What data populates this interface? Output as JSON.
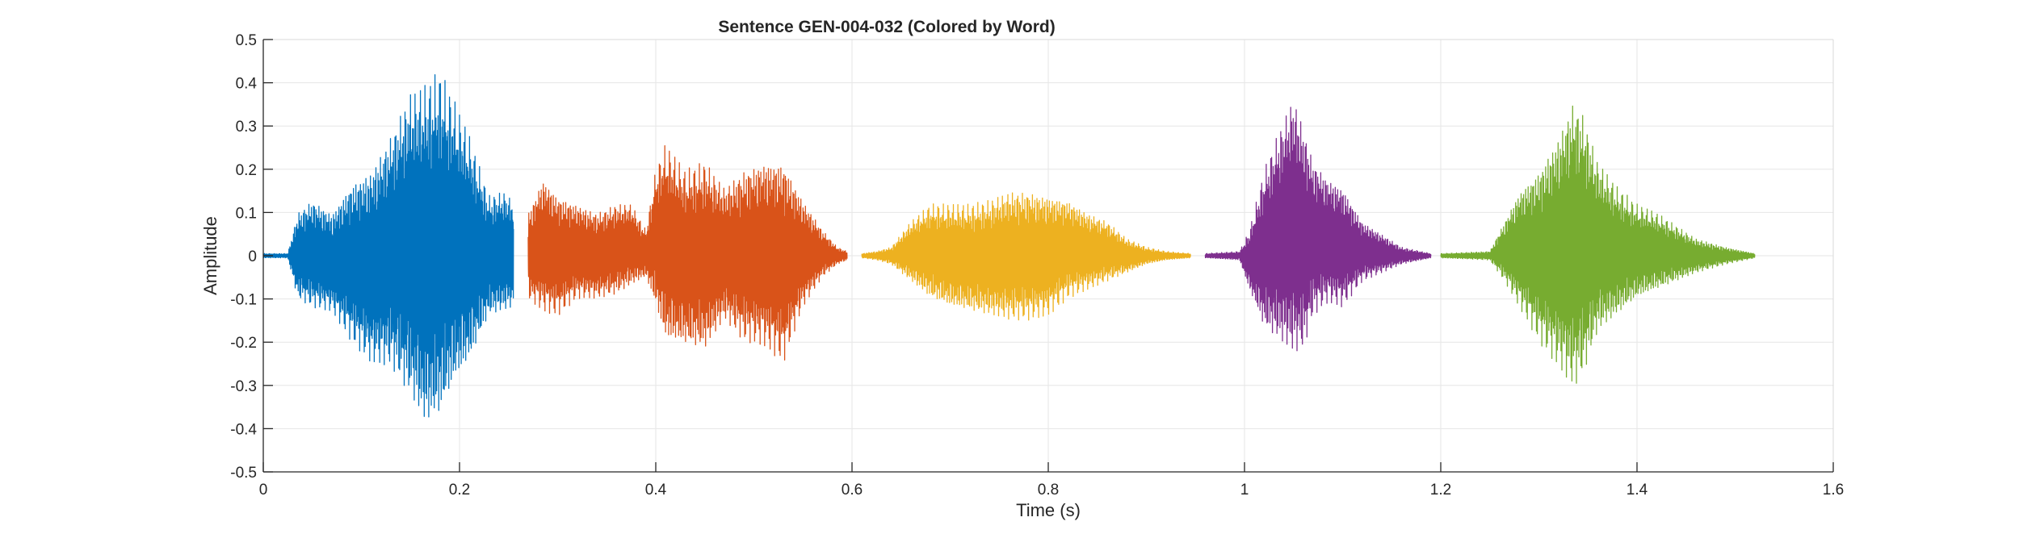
{
  "chart_data": {
    "type": "line",
    "title": "Sentence GEN-004-032 (Colored by Word)",
    "xlabel": "Time (s)",
    "ylabel": "Amplitude",
    "xlim": [
      0,
      1.6
    ],
    "ylim": [
      -0.5,
      0.5
    ],
    "xticks": [
      0,
      0.2,
      0.4,
      0.6,
      0.8,
      1,
      1.2,
      1.4,
      1.6
    ],
    "xtick_labels": [
      "0",
      "0.2",
      "0.4",
      "0.6",
      "0.8",
      "1",
      "1.2",
      "1.4",
      "1.6"
    ],
    "yticks": [
      0.5,
      0.4,
      0.3,
      0.2,
      0.1,
      0,
      -0.1,
      -0.2,
      -0.3,
      -0.4,
      -0.5
    ],
    "ytick_labels": [
      "0.5",
      "0.4",
      "0.3",
      "0.2",
      "0.1",
      "0",
      "-0.1",
      "-0.2",
      "-0.3",
      "-0.4",
      "-0.5"
    ],
    "grid": true,
    "legend": false,
    "series": [
      {
        "color": "#0072BD",
        "start": 0.0,
        "end": 0.255,
        "envelope": {
          "t": [
            0.0,
            0.025,
            0.035,
            0.05,
            0.07,
            0.09,
            0.11,
            0.13,
            0.15,
            0.165,
            0.18,
            0.195,
            0.21,
            0.23,
            0.245,
            0.255
          ],
          "pos": [
            0.005,
            0.005,
            0.1,
            0.13,
            0.1,
            0.17,
            0.2,
            0.28,
            0.38,
            0.4,
            0.43,
            0.36,
            0.28,
            0.14,
            0.15,
            0.13
          ],
          "neg": [
            -0.005,
            -0.005,
            -0.1,
            -0.12,
            -0.13,
            -0.2,
            -0.25,
            -0.26,
            -0.33,
            -0.4,
            -0.38,
            -0.3,
            -0.25,
            -0.14,
            -0.13,
            -0.12
          ]
        }
      },
      {
        "color": "#D95319",
        "start": 0.27,
        "end": 0.595,
        "envelope": {
          "t": [
            0.27,
            0.285,
            0.3,
            0.32,
            0.34,
            0.36,
            0.375,
            0.39,
            0.4,
            0.41,
            0.43,
            0.45,
            0.47,
            0.49,
            0.51,
            0.53,
            0.55,
            0.57,
            0.585,
            0.595
          ],
          "pos": [
            0.1,
            0.18,
            0.14,
            0.12,
            0.1,
            0.12,
            0.12,
            0.06,
            0.2,
            0.26,
            0.2,
            0.22,
            0.16,
            0.2,
            0.22,
            0.22,
            0.13,
            0.06,
            0.02,
            0.01
          ],
          "neg": [
            -0.1,
            -0.13,
            -0.14,
            -0.1,
            -0.1,
            -0.09,
            -0.07,
            -0.05,
            -0.12,
            -0.2,
            -0.21,
            -0.22,
            -0.15,
            -0.2,
            -0.21,
            -0.25,
            -0.12,
            -0.05,
            -0.02,
            -0.01
          ]
        }
      },
      {
        "color": "#EDB120",
        "start": 0.61,
        "end": 0.945,
        "envelope": {
          "t": [
            0.61,
            0.625,
            0.64,
            0.66,
            0.68,
            0.7,
            0.72,
            0.74,
            0.76,
            0.78,
            0.8,
            0.82,
            0.84,
            0.86,
            0.88,
            0.9,
            0.92,
            0.945
          ],
          "pos": [
            0.005,
            0.01,
            0.02,
            0.08,
            0.12,
            0.12,
            0.12,
            0.13,
            0.15,
            0.15,
            0.14,
            0.13,
            0.1,
            0.08,
            0.04,
            0.02,
            0.01,
            0.005
          ],
          "neg": [
            -0.005,
            -0.01,
            -0.02,
            -0.06,
            -0.1,
            -0.12,
            -0.13,
            -0.14,
            -0.15,
            -0.15,
            -0.14,
            -0.1,
            -0.08,
            -0.06,
            -0.04,
            -0.02,
            -0.01,
            -0.005
          ]
        }
      },
      {
        "color": "#7E2F8E",
        "start": 0.96,
        "end": 1.19,
        "envelope": {
          "t": [
            0.96,
            0.995,
            1.005,
            1.02,
            1.035,
            1.05,
            1.06,
            1.07,
            1.085,
            1.1,
            1.12,
            1.14,
            1.16,
            1.19
          ],
          "pos": [
            0.005,
            0.01,
            0.06,
            0.2,
            0.29,
            0.37,
            0.3,
            0.22,
            0.18,
            0.16,
            0.08,
            0.05,
            0.02,
            0.005
          ],
          "neg": [
            -0.005,
            -0.01,
            -0.08,
            -0.17,
            -0.2,
            -0.23,
            -0.22,
            -0.14,
            -0.11,
            -0.12,
            -0.06,
            -0.04,
            -0.02,
            -0.005
          ]
        }
      },
      {
        "color": "#77AC30",
        "start": 1.2,
        "end": 1.52,
        "envelope": {
          "t": [
            1.2,
            1.25,
            1.265,
            1.28,
            1.3,
            1.32,
            1.335,
            1.345,
            1.36,
            1.38,
            1.4,
            1.42,
            1.44,
            1.46,
            1.49,
            1.52
          ],
          "pos": [
            0.005,
            0.01,
            0.08,
            0.15,
            0.2,
            0.28,
            0.36,
            0.33,
            0.22,
            0.16,
            0.12,
            0.1,
            0.07,
            0.04,
            0.02,
            0.005
          ],
          "neg": [
            -0.005,
            -0.01,
            -0.06,
            -0.12,
            -0.2,
            -0.26,
            -0.31,
            -0.28,
            -0.18,
            -0.14,
            -0.1,
            -0.08,
            -0.06,
            -0.04,
            -0.02,
            -0.005
          ]
        }
      }
    ]
  }
}
